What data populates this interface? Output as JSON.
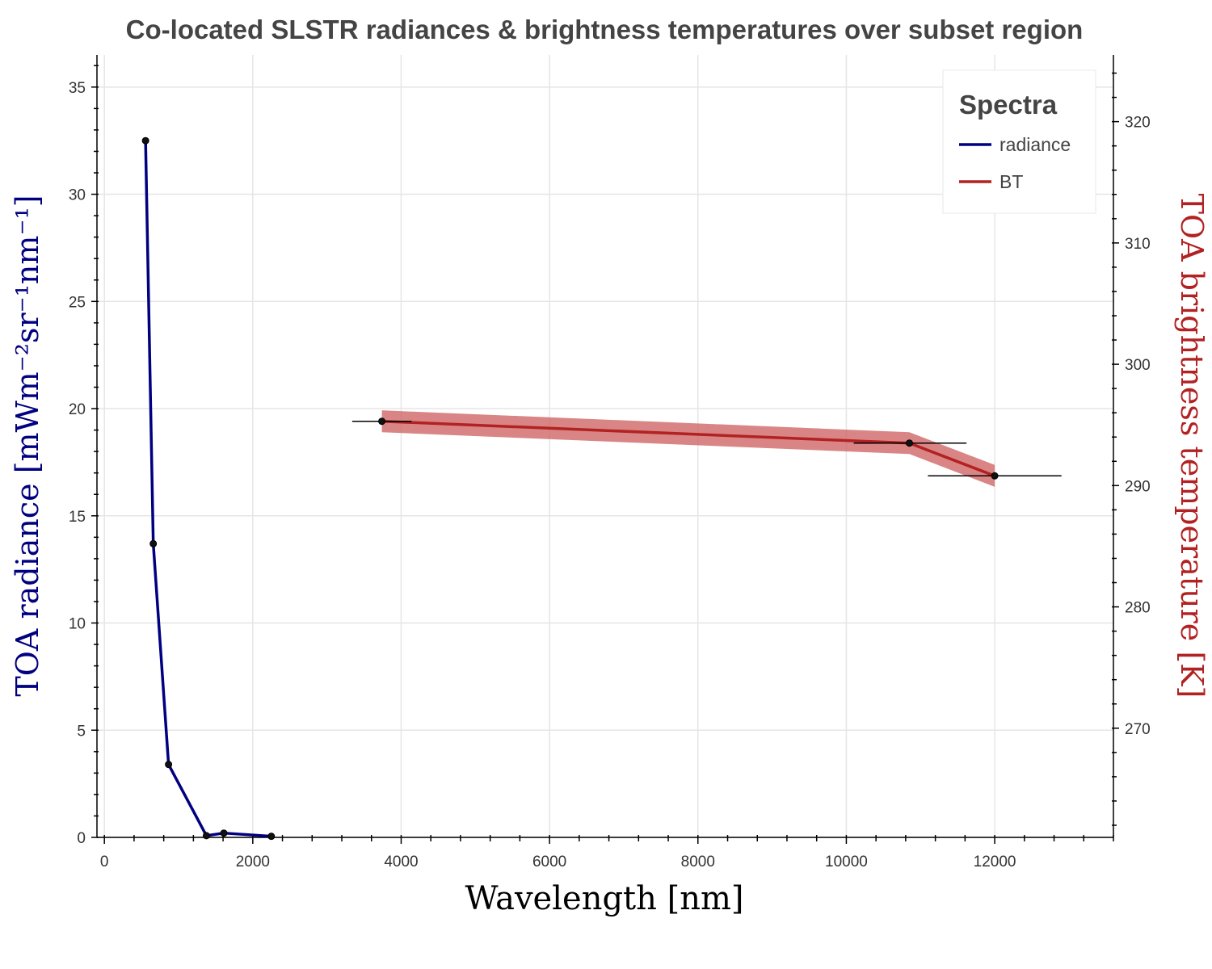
{
  "chart_data": {
    "type": "line",
    "title": "Co-located SLSTR radiances & brightness temperatures over subset region",
    "xlabel": "Wavelength [nm]",
    "ylabel_left": "TOA radiance [mWm⁻²sr⁻¹nm⁻¹]",
    "ylabel_right": "TOA brightness temperature [K]",
    "xlim": [
      -100,
      13600
    ],
    "ylim_left": [
      0,
      36.5
    ],
    "ylim_right": [
      261,
      325.5
    ],
    "x_ticks": [
      "0",
      "2000",
      "4000",
      "6000",
      "8000",
      "10000",
      "12000"
    ],
    "y_left_ticks": [
      "0",
      "5",
      "10",
      "15",
      "20",
      "25",
      "30",
      "35"
    ],
    "y_right_ticks": [
      "270",
      "280",
      "290",
      "300",
      "310",
      "320"
    ],
    "grid": true,
    "legend": {
      "title": "Spectra",
      "placement": "top-right"
    },
    "series": [
      {
        "name": "radiance",
        "axis": "left",
        "color": "#000080",
        "x": [
          555,
          659,
          865,
          1375,
          1610,
          2250
        ],
        "y": [
          32.5,
          13.7,
          3.4,
          0.08,
          0.2,
          0.05
        ]
      },
      {
        "name": "BT",
        "axis": "right",
        "color": "#b22222",
        "band_color": "#cd5c5c",
        "band_half_width": 0.9,
        "x": [
          3740,
          10850,
          12000
        ],
        "y": [
          295.3,
          293.5,
          290.8
        ],
        "x_err": [
          [
            3340,
            4140
          ],
          [
            10100,
            11620
          ],
          [
            11100,
            12900
          ]
        ]
      }
    ]
  }
}
